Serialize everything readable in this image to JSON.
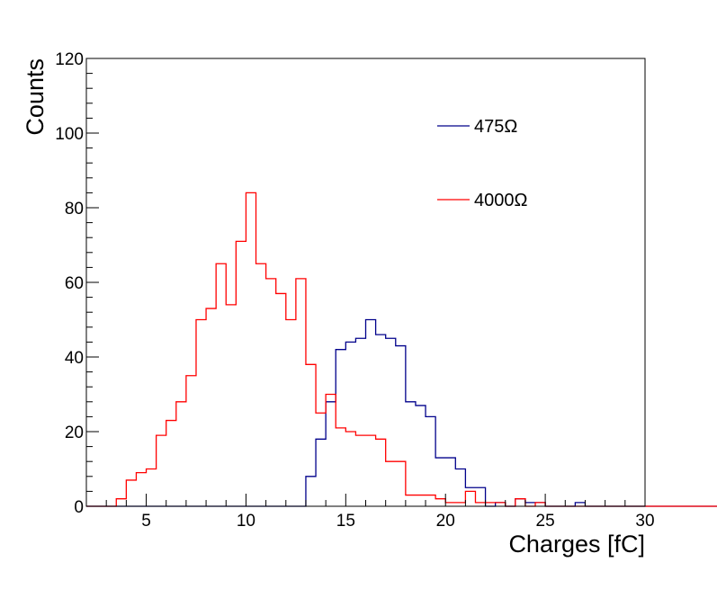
{
  "chart_data": {
    "type": "histogram",
    "xlabel": "Charges [fC]",
    "ylabel": "Counts",
    "xlim": [
      2,
      30
    ],
    "ylim": [
      0,
      120
    ],
    "x_ticks": [
      5,
      10,
      15,
      20,
      25,
      30
    ],
    "y_ticks": [
      0,
      20,
      40,
      60,
      80,
      100,
      120
    ],
    "bin_start": 2,
    "bin_width": 0.5,
    "grid": false,
    "legend_position": "top-right",
    "series": [
      {
        "name": "475Ω",
        "color": "#00008b",
        "values": [
          0,
          0,
          0,
          0,
          0,
          0,
          0,
          0,
          0,
          0,
          0,
          0,
          0,
          0,
          0,
          0,
          0,
          0,
          0,
          0,
          0,
          0,
          8,
          18,
          28,
          42,
          44,
          45,
          50,
          46,
          45,
          43,
          28,
          27,
          24,
          13,
          13,
          10,
          5,
          5,
          0,
          1,
          0,
          2,
          1,
          1,
          0,
          0,
          0,
          1,
          0,
          0,
          0,
          0,
          0,
          0,
          0,
          0,
          0,
          0,
          0,
          0,
          0,
          0,
          0,
          0
        ]
      },
      {
        "name": "4000Ω",
        "color": "#ff0000",
        "values": [
          0,
          0,
          0,
          2,
          7,
          9,
          10,
          19,
          23,
          28,
          35,
          50,
          53,
          65,
          54,
          71,
          84,
          65,
          61,
          57,
          50,
          61,
          38,
          25,
          30,
          21,
          20,
          19,
          19,
          18,
          12,
          12,
          3,
          3,
          3,
          2,
          1,
          1,
          4,
          1,
          1,
          1,
          0,
          2,
          0,
          1,
          0,
          0,
          0,
          0,
          0,
          0,
          0,
          0,
          0,
          0,
          0,
          0,
          0,
          0,
          0,
          0,
          0,
          0,
          0,
          0
        ]
      }
    ]
  }
}
